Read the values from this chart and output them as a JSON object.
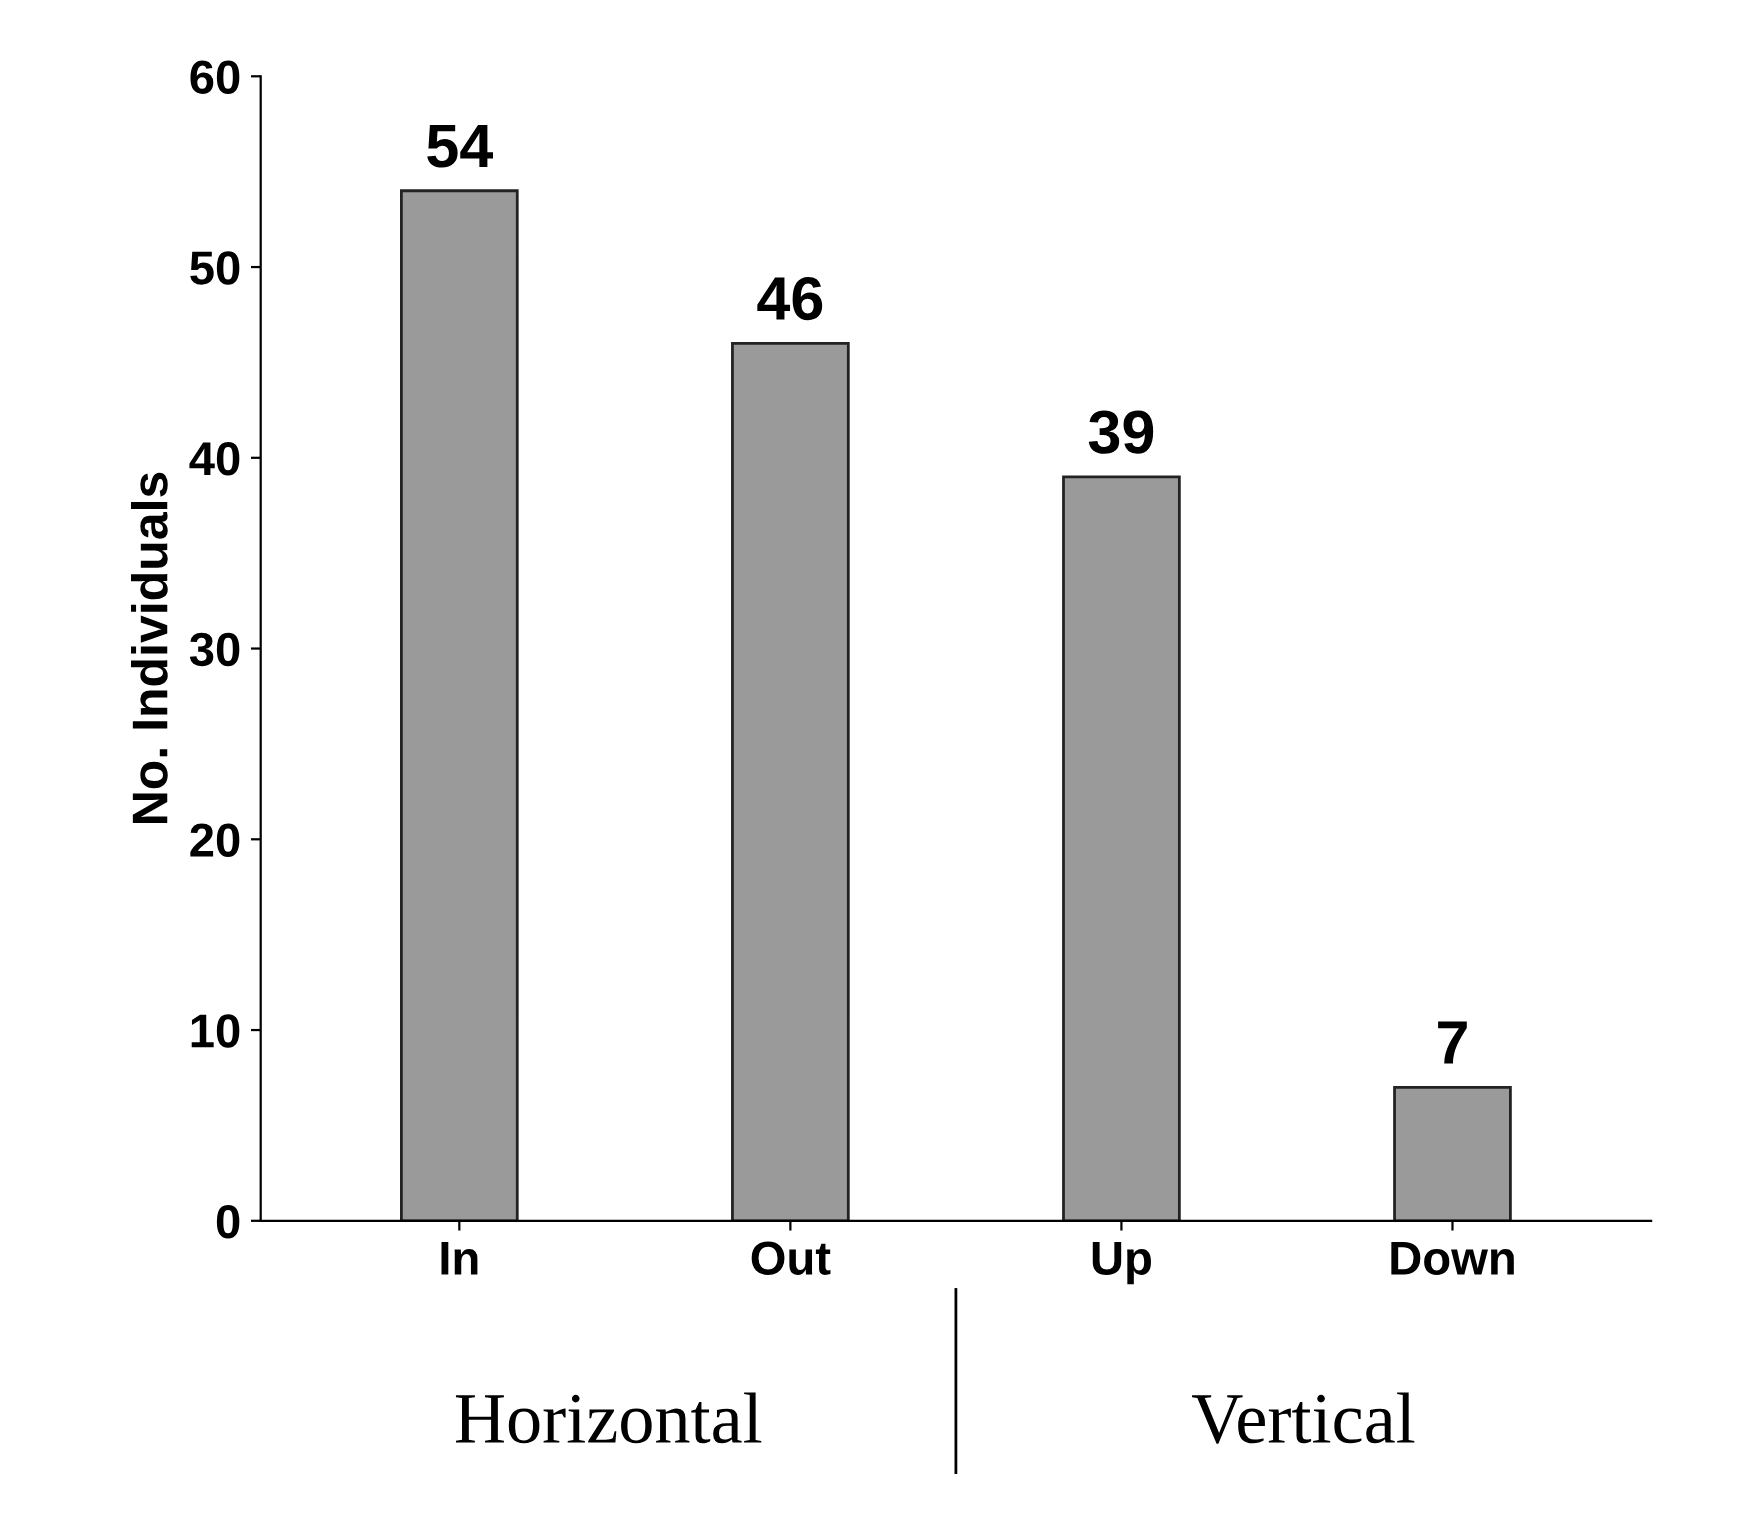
{
  "chart_data": {
    "type": "bar",
    "ylabel": "No. Individuals",
    "categories": [
      "In",
      "Out",
      "Up",
      "Down"
    ],
    "values": [
      54,
      46,
      39,
      7
    ],
    "color": "#9a9a9a",
    "data_labels": true,
    "ylim": [
      0,
      60
    ],
    "yticks": [
      0,
      10,
      20,
      30,
      40,
      50,
      60
    ],
    "grid": false,
    "annotations": [
      "Horizontal",
      "Vertical"
    ]
  }
}
